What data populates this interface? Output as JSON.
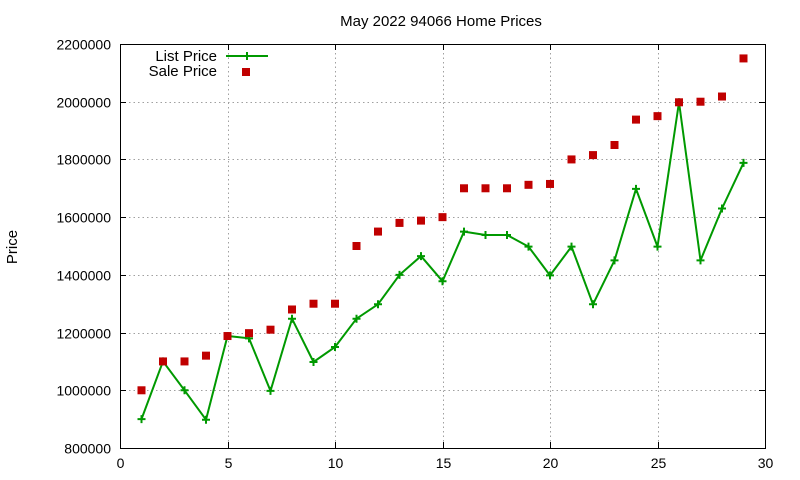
{
  "chart_data": {
    "type": "line",
    "title": "May 2022 94066 Home Prices",
    "xlabel": "",
    "ylabel": "Price",
    "xlim": [
      0,
      30
    ],
    "ylim": [
      800000,
      2200000
    ],
    "xticks": [
      "0",
      "5",
      "10",
      "15",
      "20",
      "25",
      "30"
    ],
    "yticks": [
      "800000",
      "1000000",
      "1200000",
      "1400000",
      "1600000",
      "1800000",
      "2000000",
      "2200000"
    ],
    "grid": true,
    "legend_position": "top-left",
    "x": [
      1,
      2,
      3,
      4,
      5,
      6,
      7,
      8,
      9,
      10,
      11,
      12,
      13,
      14,
      15,
      16,
      17,
      18,
      19,
      20,
      21,
      22,
      23,
      24,
      25,
      26,
      27,
      28,
      29
    ],
    "series": [
      {
        "name": "List Price",
        "style": "line-with-plus-markers",
        "color": "#009900",
        "values": [
          900000,
          1100000,
          1000000,
          898000,
          1188000,
          1180000,
          998000,
          1248000,
          1098000,
          1150000,
          1248000,
          1298000,
          1400000,
          1465000,
          1378000,
          1550000,
          1538000,
          1538000,
          1498000,
          1398000,
          1498000,
          1298000,
          1450000,
          1698000,
          1498000,
          1998000,
          1450000,
          1630000,
          1788000
        ]
      },
      {
        "name": "Sale Price",
        "style": "square-markers",
        "color": "#c00000",
        "values": [
          1000000,
          1100000,
          1100000,
          1120000,
          1188000,
          1198000,
          1210000,
          1280000,
          1300000,
          1300000,
          1500000,
          1550000,
          1580000,
          1588000,
          1600000,
          1700000,
          1700000,
          1700000,
          1712000,
          1715000,
          1800000,
          1815000,
          1850000,
          1938000,
          1950000,
          1998000,
          2000000,
          2018000,
          2150000
        ]
      }
    ]
  }
}
